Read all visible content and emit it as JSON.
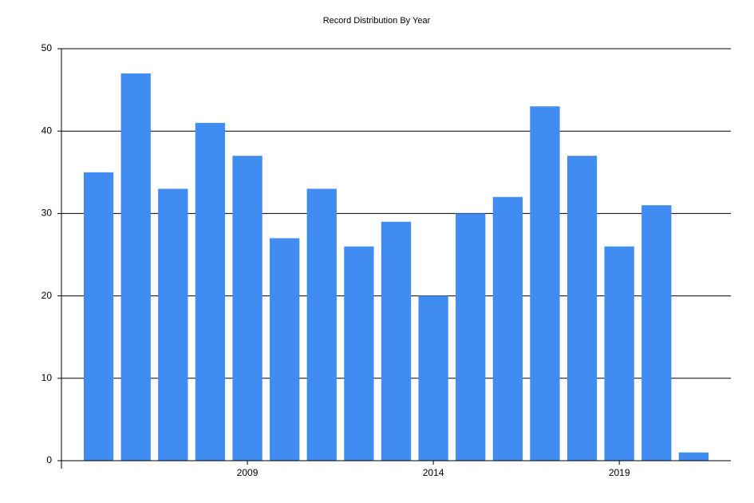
{
  "chart_data": {
    "type": "bar",
    "title": "Record Distribution By Year",
    "categories": [
      null,
      null,
      null,
      null,
      "2009",
      null,
      null,
      null,
      null,
      "2014",
      null,
      null,
      null,
      null,
      "2019",
      null,
      null
    ],
    "values": [
      35,
      47,
      33,
      41,
      37,
      27,
      33,
      26,
      29,
      20,
      30,
      32,
      43,
      37,
      26,
      31,
      1
    ],
    "color": "#418cf0",
    "ylim": [
      0,
      50
    ],
    "yticks": [
      0,
      10,
      20,
      30,
      40,
      50
    ],
    "grid": true
  }
}
